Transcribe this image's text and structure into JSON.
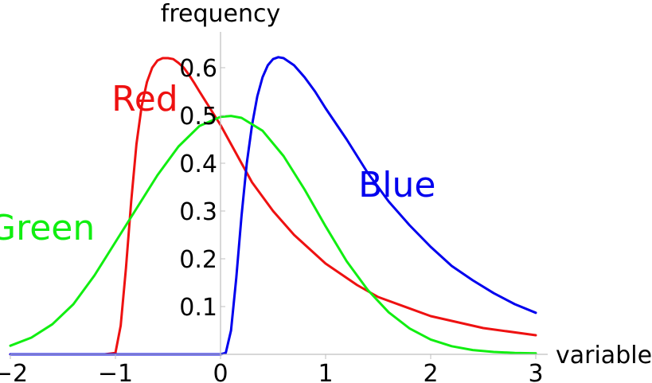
{
  "chart_data": {
    "type": "line",
    "xlabel": "variable",
    "ylabel": "frequency",
    "xlim": [
      -2,
      3
    ],
    "ylim": [
      0,
      0.65
    ],
    "xticks": [
      {
        "value": -2,
        "label": "−2"
      },
      {
        "value": -1,
        "label": "−1"
      },
      {
        "value": 0,
        "label": "0"
      },
      {
        "value": 1,
        "label": "1"
      },
      {
        "value": 2,
        "label": "2"
      },
      {
        "value": 3,
        "label": "3"
      }
    ],
    "yticks": [
      {
        "value": 0.1,
        "label": "0.1"
      },
      {
        "value": 0.2,
        "label": "0.2"
      },
      {
        "value": 0.3,
        "label": "0.3"
      },
      {
        "value": 0.4,
        "label": "0.4"
      },
      {
        "value": 0.5,
        "label": "0.5"
      },
      {
        "value": 0.6,
        "label": "0.6"
      }
    ],
    "series": [
      {
        "name": "Red",
        "color": "#ee1111",
        "x": [
          -2,
          -1.1,
          -1.0,
          -0.95,
          -0.9,
          -0.85,
          -0.8,
          -0.75,
          -0.7,
          -0.65,
          -0.6,
          -0.55,
          -0.5,
          -0.45,
          -0.4,
          -0.35,
          -0.3,
          -0.25,
          -0.2,
          -0.1,
          0,
          0.1,
          0.2,
          0.3,
          0.5,
          0.7,
          1.0,
          1.3,
          1.5,
          2.0,
          2.5,
          3.0
        ],
        "y": [
          0,
          0,
          0.003,
          0.06,
          0.18,
          0.32,
          0.44,
          0.52,
          0.57,
          0.6,
          0.615,
          0.62,
          0.62,
          0.618,
          0.61,
          0.6,
          0.585,
          0.568,
          0.55,
          0.515,
          0.48,
          0.44,
          0.4,
          0.36,
          0.3,
          0.25,
          0.19,
          0.145,
          0.12,
          0.08,
          0.055,
          0.04
        ]
      },
      {
        "name": "Blue",
        "color": "#0000ee",
        "x": [
          -2,
          -0.5,
          0,
          0.05,
          0.1,
          0.15,
          0.2,
          0.25,
          0.3,
          0.35,
          0.4,
          0.45,
          0.5,
          0.55,
          0.6,
          0.7,
          0.8,
          0.9,
          1.0,
          1.2,
          1.4,
          1.6,
          1.8,
          2.0,
          2.2,
          2.4,
          2.6,
          2.8,
          3.0
        ],
        "y": [
          0,
          0,
          0,
          0.003,
          0.05,
          0.16,
          0.29,
          0.4,
          0.48,
          0.54,
          0.58,
          0.605,
          0.618,
          0.622,
          0.62,
          0.605,
          0.58,
          0.55,
          0.515,
          0.45,
          0.38,
          0.32,
          0.27,
          0.225,
          0.185,
          0.155,
          0.128,
          0.105,
          0.087
        ]
      },
      {
        "name": "Green",
        "color": "#11ee11",
        "x": [
          -2,
          -1.8,
          -1.6,
          -1.4,
          -1.2,
          -1.0,
          -0.8,
          -0.6,
          -0.4,
          -0.2,
          0,
          0.1,
          0.2,
          0.4,
          0.6,
          0.8,
          1.0,
          1.2,
          1.4,
          1.6,
          1.8,
          2.0,
          2.2,
          2.4,
          2.6,
          2.8,
          3.0
        ],
        "y": [
          0.018,
          0.035,
          0.063,
          0.105,
          0.165,
          0.235,
          0.305,
          0.375,
          0.435,
          0.478,
          0.497,
          0.499,
          0.495,
          0.468,
          0.415,
          0.345,
          0.268,
          0.195,
          0.135,
          0.088,
          0.054,
          0.031,
          0.017,
          0.009,
          0.005,
          0.003,
          0.002
        ]
      }
    ],
    "annotations": [
      {
        "text": "Red",
        "series": "Red",
        "color": "#ee1111",
        "x": -0.72,
        "y": 0.51
      },
      {
        "text": "Blue",
        "series": "Blue",
        "color": "#0000ee",
        "x": 1.68,
        "y": 0.33
      },
      {
        "text": "Green",
        "series": "Green",
        "color": "#11ee11",
        "x": -1.7,
        "y": 0.24
      }
    ],
    "grid": false
  }
}
